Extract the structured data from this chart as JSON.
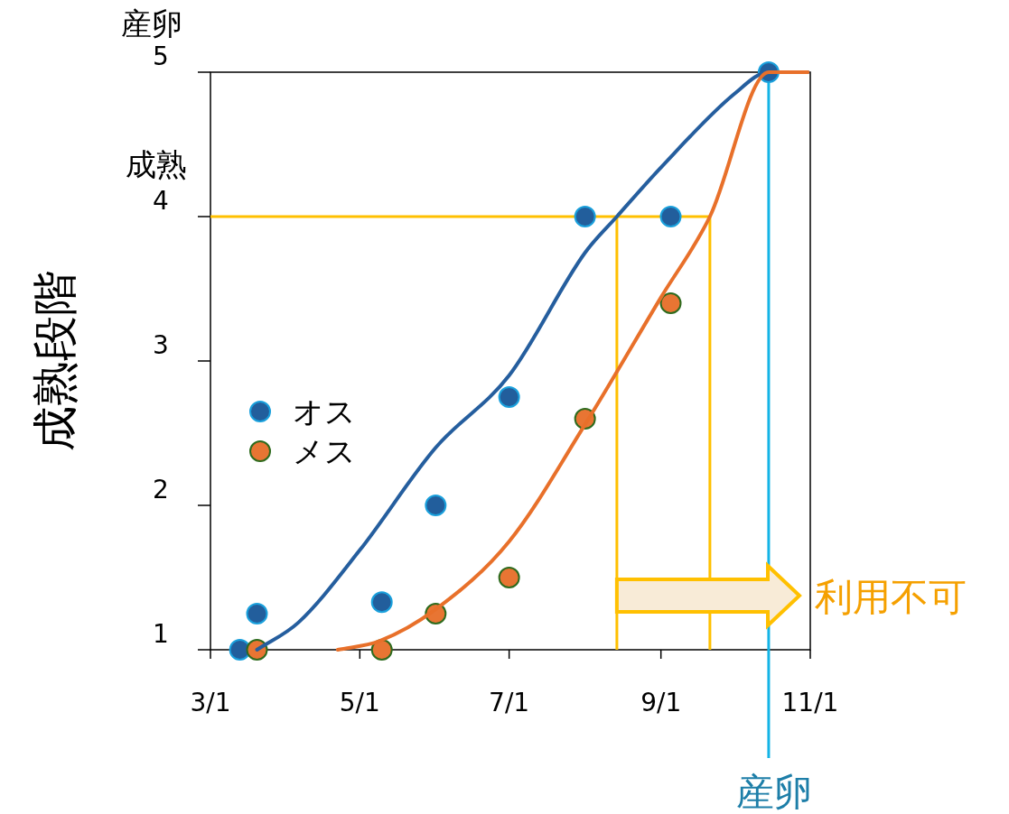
{
  "chart_data": {
    "type": "scatter",
    "ylabel": "成熟段階",
    "xlim": [
      "--03-01",
      "--11-01"
    ],
    "xticks": [
      {
        "value": "--03-01",
        "label": "3/1"
      },
      {
        "value": "--05-01",
        "label": "5/1"
      },
      {
        "value": "--07-01",
        "label": "7/1"
      },
      {
        "value": "--09-01",
        "label": "9/1"
      },
      {
        "value": "--11-01",
        "label": "11/1"
      }
    ],
    "ylim": [
      1,
      5
    ],
    "yticks": [
      1,
      2,
      3,
      4,
      5
    ],
    "grid": false,
    "legend": "left",
    "series": [
      {
        "name": "オス",
        "marker": "circle",
        "color": "#225e9c",
        "x": [
          "--03-13",
          "--03-20",
          "--05-10",
          "--06-01",
          "--07-01",
          "--08-01",
          "--09-05",
          "--10-15"
        ],
        "values": [
          1,
          1.25,
          1.33,
          2,
          2.75,
          4,
          4,
          5
        ]
      },
      {
        "name": "メス",
        "marker": "circle",
        "color": "#e87533",
        "x": [
          "--03-20",
          "--05-10",
          "--06-01",
          "--07-01",
          "--08-01",
          "--09-05"
        ],
        "values": [
          1,
          1,
          1.25,
          1.5,
          2.6,
          3.4
        ]
      },
      {
        "type": "line",
        "marker": "none",
        "color": "#255e9e",
        "x": [
          "--03-20",
          "--04-06",
          "--05-01",
          "--06-01",
          "--07-01",
          "--08-01",
          "--08-14",
          "--09-01",
          "--10-01",
          "--10-15",
          "--10-31"
        ],
        "values": [
          1,
          1.19,
          1.69,
          2.4,
          2.9,
          3.75,
          4.0,
          4.34,
          4.85,
          5,
          5
        ]
      },
      {
        "type": "line",
        "marker": "none",
        "color": "#e8702a",
        "x": [
          "--04-22",
          "--05-09",
          "--06-01",
          "--07-01",
          "--08-01",
          "--09-01",
          "--09-21",
          "--10-15",
          "--10-31"
        ],
        "values": [
          1,
          1.06,
          1.28,
          1.75,
          2.56,
          3.44,
          4.0,
          5,
          5
        ]
      }
    ],
    "ref_lines": [
      {
        "axis": "y",
        "value": 4,
        "label": "成熟",
        "color": "#ffc000"
      },
      {
        "axis": "x",
        "value": "--08-14",
        "color": "#ffc000"
      },
      {
        "axis": "x",
        "value": "--09-21",
        "color": "#ffc000"
      },
      {
        "axis": "x",
        "value": "--10-15",
        "label": "産卵",
        "color": "#14b4e6"
      }
    ],
    "annotations": [
      "産卵",
      "利用不可"
    ]
  }
}
